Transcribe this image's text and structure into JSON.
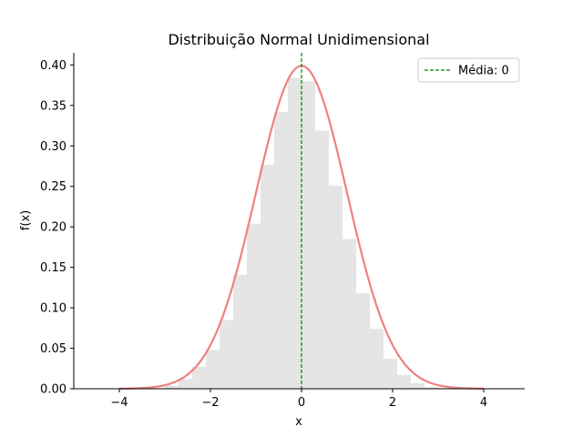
{
  "chart_data": {
    "type": "bar",
    "title": "Distribuição Normal Unidimensional",
    "xlabel": "x",
    "ylabel": "f(x)",
    "xlim": [
      -5.0,
      4.9
    ],
    "ylim": [
      0.0,
      0.415
    ],
    "xticks": [
      -4,
      -2,
      0,
      2,
      4
    ],
    "xtick_labels": [
      "−4",
      "−2",
      "0",
      "2",
      "4"
    ],
    "yticks": [
      0.0,
      0.05,
      0.1,
      0.15,
      0.2,
      0.25,
      0.3,
      0.35,
      0.4
    ],
    "ytick_labels": [
      "0.00",
      "0.05",
      "0.10",
      "0.15",
      "0.20",
      "0.25",
      "0.30",
      "0.35",
      "0.40"
    ],
    "histogram": {
      "color": "#e5e5e5",
      "bin_width": 0.3,
      "bin_starts": [
        -3.0,
        -2.7,
        -2.4,
        -2.1,
        -1.8,
        -1.5,
        -1.2,
        -0.9,
        -0.6,
        -0.3,
        0.0,
        0.3,
        0.6,
        0.9,
        1.2,
        1.5,
        1.8,
        2.1,
        2.4,
        2.7
      ],
      "values": [
        0.004,
        0.012,
        0.027,
        0.048,
        0.085,
        0.141,
        0.204,
        0.277,
        0.342,
        0.384,
        0.38,
        0.319,
        0.251,
        0.185,
        0.118,
        0.074,
        0.037,
        0.017,
        0.007,
        0.002
      ]
    },
    "pdf_curve": {
      "color": "#f08080",
      "mean": 0,
      "std": 1,
      "x_range": [
        -4,
        4
      ]
    },
    "mean_line": {
      "x": 0,
      "color": "#008000",
      "style": "dashed"
    },
    "legend": {
      "position": "top-right",
      "entries": [
        {
          "label": "Média: 0",
          "color": "#008000",
          "style": "dashed"
        }
      ]
    },
    "grid": false
  }
}
